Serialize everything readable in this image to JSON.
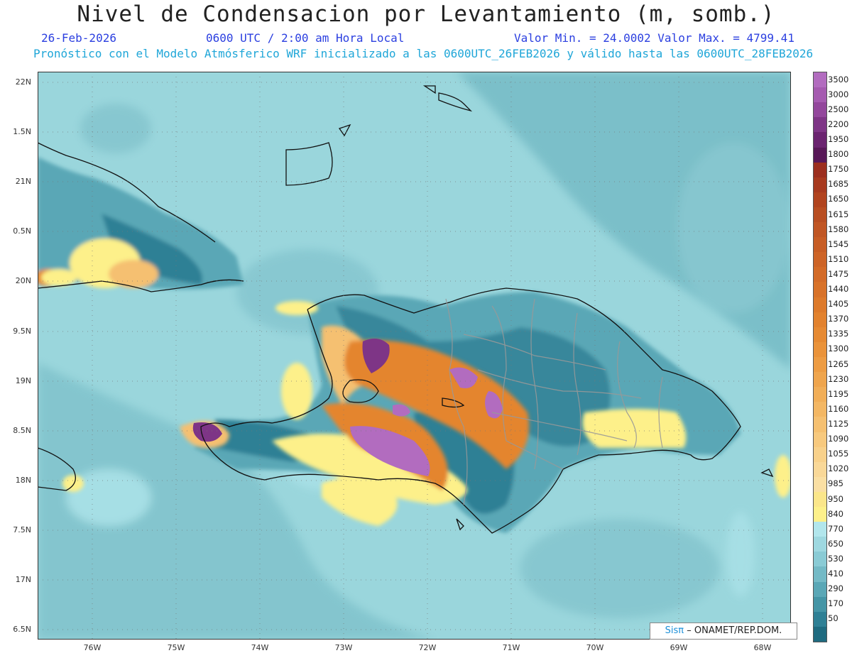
{
  "header": {
    "title": "Nivel de Condensacion por Levantamiento (m, somb.)",
    "date": "26-Feb-2026",
    "time": "0600 UTC / 2:00 am Hora Local",
    "minmax": "Valor Min. = 24.0002  Valor Max. = 4799.41",
    "info": "Pronóstico con el Modelo Atmósferico WRF inicializado a las 0600UTC_26FEB2026 y válido hasta las  0600UTC_28FEB2026"
  },
  "axes": {
    "lat_labels": [
      "22N",
      "1.5N",
      "21N",
      "0.5N",
      "20N",
      "9.5N",
      "19N",
      "8.5N",
      "18N",
      "7.5N",
      "17N",
      "6.5N"
    ],
    "lon_labels": [
      "76W",
      "75W",
      "74W",
      "73W",
      "72W",
      "71W",
      "70W",
      "69W",
      "68W"
    ]
  },
  "legend": {
    "items": [
      {
        "label": "3500",
        "color": "#b26cbf"
      },
      {
        "label": "3000",
        "color": "#a55bb0"
      },
      {
        "label": "2500",
        "color": "#93479c"
      },
      {
        "label": "2200",
        "color": "#7e3586"
      },
      {
        "label": "1950",
        "color": "#6b2470"
      },
      {
        "label": "1800",
        "color": "#581858"
      },
      {
        "label": "1750",
        "color": "#9c2f1f"
      },
      {
        "label": "1685",
        "color": "#a73a1f"
      },
      {
        "label": "1650",
        "color": "#b1441f"
      },
      {
        "label": "1615",
        "color": "#b84e22"
      },
      {
        "label": "1580",
        "color": "#c05624"
      },
      {
        "label": "1545",
        "color": "#c75d25"
      },
      {
        "label": "1510",
        "color": "#cd6427"
      },
      {
        "label": "1475",
        "color": "#d36b28"
      },
      {
        "label": "1440",
        "color": "#d87229"
      },
      {
        "label": "1405",
        "color": "#dd7a2b"
      },
      {
        "label": "1370",
        "color": "#e2822e"
      },
      {
        "label": "1335",
        "color": "#e68a33"
      },
      {
        "label": "1300",
        "color": "#ea933a"
      },
      {
        "label": "1265",
        "color": "#ed9c43"
      },
      {
        "label": "1230",
        "color": "#efa54d"
      },
      {
        "label": "1195",
        "color": "#f1ae58"
      },
      {
        "label": "1160",
        "color": "#f3b764"
      },
      {
        "label": "1125",
        "color": "#f5c071"
      },
      {
        "label": "1090",
        "color": "#f7c97e"
      },
      {
        "label": "1055",
        "color": "#f8d18b"
      },
      {
        "label": "1020",
        "color": "#f9d898"
      },
      {
        "label": "985",
        "color": "#fadfa3"
      },
      {
        "label": "950",
        "color": "#fbe68a"
      },
      {
        "label": "840",
        "color": "#fdf08a"
      },
      {
        "label": "770",
        "color": "#b2e6ec"
      },
      {
        "label": "650",
        "color": "#9ed8e0"
      },
      {
        "label": "530",
        "color": "#8acbd5"
      },
      {
        "label": "410",
        "color": "#74bac6"
      },
      {
        "label": "290",
        "color": "#5aa7b6"
      },
      {
        "label": "170",
        "color": "#4595a6"
      },
      {
        "label": "50",
        "color": "#2f8095"
      },
      {
        "label": "",
        "color": "#1f6b80"
      }
    ]
  },
  "credit": {
    "logo": "Sisπ",
    "text": "– ONAMET/REP.DOM."
  },
  "colors": {
    "ocean": "#8fd0d8",
    "deep": "#2f8095",
    "yellow": "#fdf08a",
    "orange": "#e4852e",
    "purple": "#b26cbf",
    "dark_purple": "#7e3586"
  }
}
